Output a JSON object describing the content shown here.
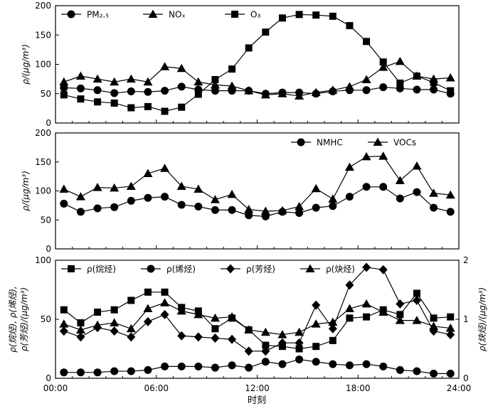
{
  "xlabel": "时刻",
  "x_tick_labels": [
    "00:00",
    "06:00",
    "12:00",
    "18:00",
    "24:00"
  ],
  "chart_data": [
    {
      "type": "line",
      "x": [
        0,
        1,
        2,
        3,
        4,
        5,
        6,
        7,
        8,
        9,
        10,
        11,
        12,
        13,
        14,
        15,
        16,
        17,
        18,
        19,
        20,
        21,
        22,
        23
      ],
      "ylim": [
        0,
        200
      ],
      "yticks": [
        0,
        50,
        100,
        150,
        200
      ],
      "ylabel": "ρ/(μg/m³)",
      "legend": "top-left",
      "series": [
        {
          "name": "PM₂.₅",
          "marker": "circle",
          "values": [
            60,
            59,
            56,
            51,
            54,
            53,
            55,
            62,
            57,
            55,
            55,
            55,
            50,
            52,
            52,
            50,
            54,
            56,
            56,
            61,
            59,
            57,
            57,
            50
          ]
        },
        {
          "name": "NOₓ",
          "marker": "triangle",
          "values": [
            70,
            80,
            75,
            70,
            75,
            70,
            96,
            93,
            70,
            65,
            63,
            55,
            48,
            50,
            46,
            52,
            56,
            62,
            74,
            95,
            105,
            80,
            75,
            77
          ]
        },
        {
          "name": "O₃",
          "marker": "square",
          "values": [
            48,
            41,
            36,
            34,
            26,
            28,
            20,
            27,
            49,
            74,
            92,
            128,
            155,
            179,
            185,
            184,
            182,
            166,
            139,
            104,
            68,
            80,
            69,
            55
          ]
        }
      ]
    },
    {
      "type": "line",
      "x": [
        0,
        1,
        2,
        3,
        4,
        5,
        6,
        7,
        8,
        9,
        10,
        11,
        12,
        13,
        14,
        15,
        16,
        17,
        18,
        19,
        20,
        21,
        22,
        23
      ],
      "ylim": [
        0,
        200
      ],
      "yticks": [
        0,
        50,
        100,
        150,
        200
      ],
      "ylabel": "ρ/(μg/m³)",
      "legend": "top-right",
      "series": [
        {
          "name": "NMHC",
          "marker": "circle",
          "values": [
            78,
            64,
            70,
            72,
            83,
            88,
            90,
            76,
            73,
            67,
            67,
            58,
            56,
            64,
            62,
            71,
            74,
            90,
            107,
            107,
            87,
            98,
            71,
            64
          ]
        },
        {
          "name": "VOCs",
          "marker": "triangle",
          "values": [
            103,
            90,
            106,
            105,
            108,
            130,
            139,
            108,
            103,
            85,
            94,
            68,
            65,
            66,
            73,
            104,
            86,
            141,
            159,
            160,
            118,
            143,
            96,
            93
          ]
        }
      ]
    },
    {
      "type": "line",
      "x": [
        0,
        1,
        2,
        3,
        4,
        5,
        6,
        7,
        8,
        9,
        10,
        11,
        12,
        13,
        14,
        15,
        16,
        17,
        18,
        19,
        20,
        21,
        22,
        23
      ],
      "ylim": [
        0,
        100
      ],
      "yticks": [
        0,
        50,
        100
      ],
      "ylabel": "ρ(烷烃), ρ(烯烃), ρ(芳烃)/(μg/m³)",
      "y2lim": [
        0,
        2
      ],
      "y2ticks": [
        0,
        1,
        2
      ],
      "y2label": "ρ(炔烃)/(μg/m³)",
      "legend": "top-left",
      "series": [
        {
          "name": "ρ(烷烃)",
          "marker": "square",
          "axis": "left",
          "values": [
            58,
            47,
            56,
            58,
            66,
            73,
            73,
            60,
            57,
            42,
            51,
            41,
            28,
            27,
            25,
            27,
            32,
            51,
            52,
            58,
            54,
            72,
            51,
            52
          ]
        },
        {
          "name": "ρ(烯烃)",
          "marker": "circle",
          "axis": "left",
          "values": [
            5,
            5,
            5,
            6,
            6,
            7,
            10,
            10,
            10,
            9,
            11,
            9,
            14,
            12,
            16,
            14,
            12,
            11,
            12,
            10,
            7,
            6,
            4,
            4
          ]
        },
        {
          "name": "ρ(芳烃)",
          "marker": "diamond",
          "axis": "left",
          "values": [
            40,
            35,
            43,
            40,
            35,
            48,
            54,
            36,
            35,
            34,
            33,
            23,
            23,
            30,
            30,
            62,
            42,
            79,
            94,
            92,
            63,
            66,
            40,
            37
          ]
        },
        {
          "name": "ρ(炔烃)",
          "marker": "triangle",
          "axis": "right",
          "values": [
            0.92,
            0.82,
            0.9,
            0.94,
            0.84,
            1.18,
            1.28,
            1.14,
            1.08,
            1.02,
            1.04,
            0.82,
            0.78,
            0.74,
            0.78,
            0.92,
            0.95,
            1.18,
            1.26,
            1.12,
            0.98,
            0.98,
            0.88,
            0.85
          ]
        }
      ]
    }
  ]
}
